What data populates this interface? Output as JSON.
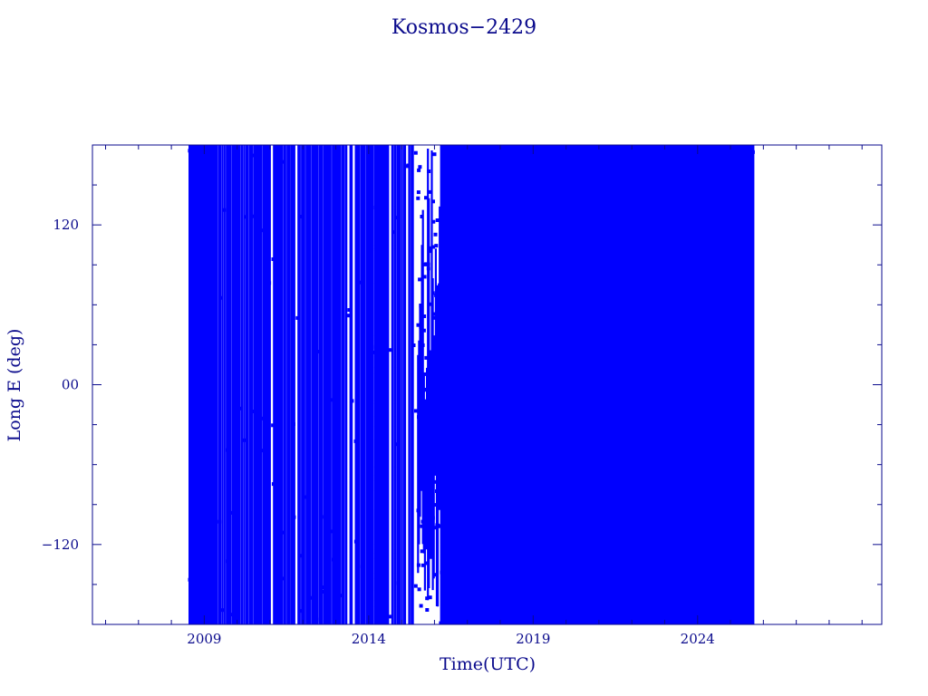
{
  "chart_data": {
    "type": "line",
    "title": "Kosmos−2429",
    "xlabel": "Time(UTC)",
    "ylabel": "Long E (deg)",
    "xlim": [
      2005.6,
      2029.6
    ],
    "ylim": [
      -180,
      180
    ],
    "x_ticks": [
      {
        "value": 2009,
        "label": "2009"
      },
      {
        "value": 2014,
        "label": "2014"
      },
      {
        "value": 2019,
        "label": "2019"
      },
      {
        "value": 2024,
        "label": "2024"
      }
    ],
    "y_ticks": [
      {
        "value": 120,
        "label": "120"
      },
      {
        "value": 0,
        "label": "00"
      },
      {
        "value": -120,
        "label": "−120"
      }
    ],
    "series_color": "#0000ff",
    "axis_color": "#0a0a8c",
    "data_range_x": [
      2008.55,
      2025.7
    ],
    "drift_segments": [
      {
        "x": [
          2008.55,
          2009.3
        ],
        "note": "continuous drift, full longitude range"
      },
      {
        "x": [
          2009.3,
          2015.5
        ],
        "note": "dense drift with intermittent gaps"
      },
      {
        "x": [
          2015.5,
          2016.2
        ],
        "lon_band": [
          -180,
          180
        ],
        "sparse": true
      },
      {
        "x": [
          2016.2,
          2017.0
        ],
        "note": "dense drift"
      },
      {
        "x": [
          2017.0,
          2025.7
        ],
        "note": "continuous drift, full longitude range"
      }
    ],
    "grid": false
  }
}
